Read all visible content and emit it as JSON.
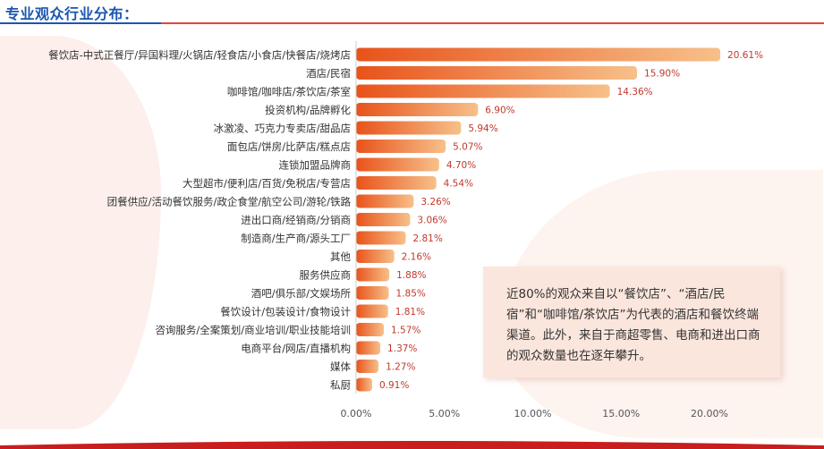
{
  "header": {
    "title": "专业观众行业分布："
  },
  "note": {
    "text": "近80%的观众来自以“餐饮店”、“酒店/民宿”和“咖啡馆/茶饮店”为代表的酒店和餐饮终端渠道。此外，来自于商超零售、电商和进出口商的观众数量也在逐年攀升。"
  },
  "colors": {
    "bar_start": "#e8531a",
    "bar_end": "#f7c08a",
    "value_label": "#c0392b",
    "axis_label": "#555555"
  },
  "chart_data": {
    "type": "bar",
    "orientation": "horizontal",
    "categories": [
      "餐饮店-中式正餐厅/异国料理/火锅店/轻食店/小食店/快餐店/烧烤店",
      "酒店/民宿",
      "咖啡馆/咖啡店/茶饮店/茶室",
      "投资机构/品牌孵化",
      "冰激凌、巧克力专卖店/甜品店",
      "面包店/饼房/比萨店/糕点店",
      "连锁加盟品牌商",
      "大型超市/便利店/百货/免税店/专营店",
      "团餐供应/活动餐饮服务/政企食堂/航空公司/游轮/铁路",
      "进出口商/经销商/分销商",
      "制造商/生产商/源头工厂",
      "其他",
      "服务供应商",
      "酒吧/俱乐部/文娱场所",
      "餐饮设计/包装设计/食物设计",
      "咨询服务/全案策划/商业培训/职业技能培训",
      "电商平台/网店/直播机构",
      "媒体",
      "私厨"
    ],
    "values": [
      20.61,
      15.9,
      14.36,
      6.9,
      5.94,
      5.07,
      4.7,
      4.54,
      3.26,
      3.06,
      2.81,
      2.16,
      1.88,
      1.85,
      1.81,
      1.57,
      1.37,
      1.27,
      0.91
    ],
    "value_labels": [
      "20.61%",
      "15.90%",
      "14.36%",
      "6.90%",
      "5.94%",
      "5.07%",
      "4.70%",
      "4.54%",
      "3.26%",
      "3.06%",
      "2.81%",
      "2.16%",
      "1.88%",
      "1.85%",
      "1.81%",
      "1.57%",
      "1.37%",
      "1.27%",
      "0.91%"
    ],
    "x_ticks": [
      "0.00%",
      "5.00%",
      "10.00%",
      "15.00%",
      "20.00%"
    ],
    "xlim": [
      0,
      21
    ],
    "grid": false,
    "title": "",
    "xlabel": "",
    "ylabel": ""
  }
}
